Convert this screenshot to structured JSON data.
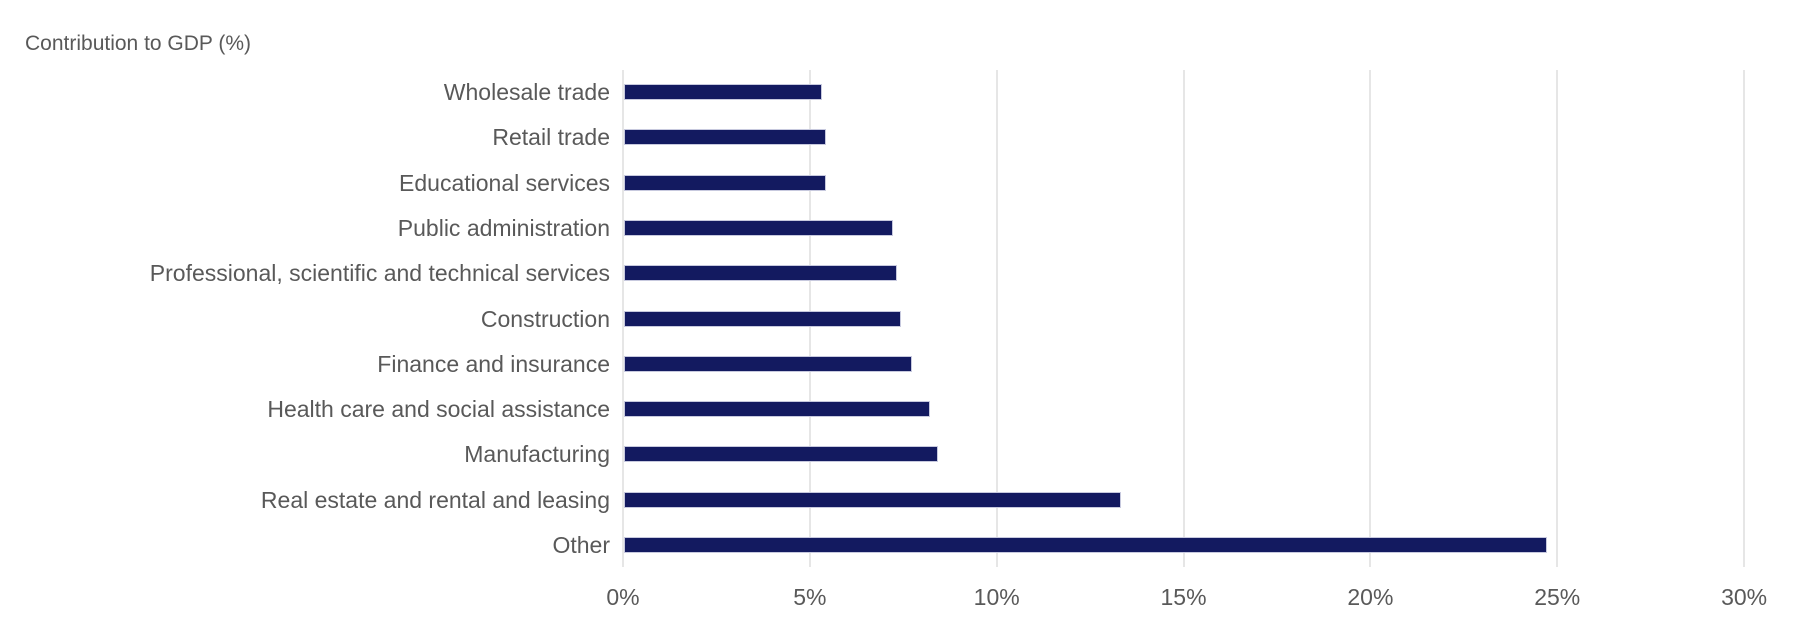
{
  "chart_data": {
    "type": "bar",
    "orientation": "horizontal",
    "title": "Contribution to GDP (%)",
    "categories": [
      "Wholesale trade",
      "Retail trade",
      "Educational services",
      "Public administration",
      "Professional, scientific and technical services",
      "Construction",
      "Finance and insurance",
      "Health care and social assistance",
      "Manufacturing",
      "Real estate and rental and leasing",
      "Other"
    ],
    "values": [
      5.3,
      5.4,
      5.4,
      7.2,
      7.3,
      7.4,
      7.7,
      8.2,
      8.4,
      13.3,
      24.7
    ],
    "xlabel": "",
    "ylabel": "",
    "x_tick_labels": [
      "0%",
      "5%",
      "10%",
      "15%",
      "20%",
      "25%",
      "30%"
    ],
    "x_tick_values": [
      0,
      5,
      10,
      15,
      20,
      25,
      30
    ],
    "xlim": [
      0,
      30
    ],
    "grid": "vertical-only",
    "legend_position": "none",
    "colors": {
      "bar_fill": "#131A60",
      "bar_border": "#C7C9DE",
      "gridline": "#E6E6E6",
      "text": "#595959",
      "background": "#FFFFFF"
    }
  }
}
